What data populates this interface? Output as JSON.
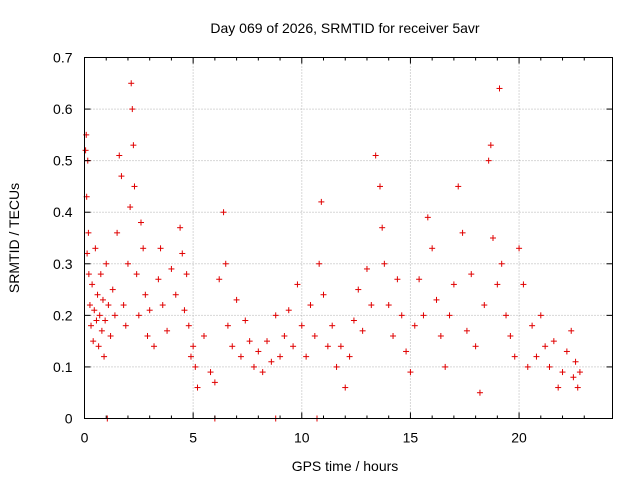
{
  "chart_data": {
    "type": "scatter",
    "title": "Day 069 of 2026, SRMTID for receiver 5avr",
    "xlabel": "GPS time / hours",
    "ylabel": "SRMTID / TECUs",
    "xlim": [
      0,
      24.3
    ],
    "ylim": [
      0,
      0.7
    ],
    "xticks": [
      0,
      5,
      10,
      15,
      20
    ],
    "yticks": [
      0,
      0.1,
      0.2,
      0.3,
      0.4,
      0.5,
      0.6,
      0.7
    ],
    "xtick_labels": [
      "0",
      "5",
      "10",
      "15",
      "20"
    ],
    "ytick_labels": [
      "0",
      "0.1",
      "0.2",
      "0.3",
      "0.4",
      "0.5",
      "0.6",
      "0.7"
    ],
    "grid": true,
    "marker": "+",
    "color": "#e00000",
    "series": [
      {
        "name": "SRMTID",
        "points": [
          [
            0.05,
            0.52
          ],
          [
            0.08,
            0.55
          ],
          [
            0.1,
            0.43
          ],
          [
            0.12,
            0.32
          ],
          [
            0.15,
            0.5
          ],
          [
            0.18,
            0.36
          ],
          [
            0.2,
            0.28
          ],
          [
            0.25,
            0.22
          ],
          [
            0.3,
            0.18
          ],
          [
            0.35,
            0.26
          ],
          [
            0.4,
            0.15
          ],
          [
            0.45,
            0.21
          ],
          [
            0.5,
            0.33
          ],
          [
            0.55,
            0.19
          ],
          [
            0.6,
            0.24
          ],
          [
            0.65,
            0.14
          ],
          [
            0.7,
            0.2
          ],
          [
            0.75,
            0.28
          ],
          [
            0.8,
            0.17
          ],
          [
            0.85,
            0.23
          ],
          [
            0.9,
            0.12
          ],
          [
            0.95,
            0.19
          ],
          [
            1.0,
            0.3
          ],
          [
            1.1,
            0.22
          ],
          [
            1.2,
            0.16
          ],
          [
            1.3,
            0.25
          ],
          [
            1.4,
            0.2
          ],
          [
            1.5,
            0.36
          ],
          [
            1.6,
            0.51
          ],
          [
            1.7,
            0.47
          ],
          [
            1.8,
            0.22
          ],
          [
            1.9,
            0.18
          ],
          [
            2.0,
            0.3
          ],
          [
            2.1,
            0.41
          ],
          [
            2.15,
            0.65
          ],
          [
            2.2,
            0.6
          ],
          [
            2.25,
            0.53
          ],
          [
            2.3,
            0.45
          ],
          [
            2.4,
            0.28
          ],
          [
            2.5,
            0.2
          ],
          [
            2.6,
            0.38
          ],
          [
            2.7,
            0.33
          ],
          [
            2.8,
            0.24
          ],
          [
            2.9,
            0.16
          ],
          [
            3.0,
            0.21
          ],
          [
            3.2,
            0.14
          ],
          [
            3.4,
            0.27
          ],
          [
            3.5,
            0.33
          ],
          [
            3.6,
            0.22
          ],
          [
            3.8,
            0.17
          ],
          [
            4.0,
            0.29
          ],
          [
            4.2,
            0.24
          ],
          [
            4.4,
            0.37
          ],
          [
            4.5,
            0.32
          ],
          [
            4.6,
            0.21
          ],
          [
            4.7,
            0.28
          ],
          [
            4.8,
            0.18
          ],
          [
            4.9,
            0.12
          ],
          [
            5.0,
            0.14
          ],
          [
            5.1,
            0.1
          ],
          [
            5.2,
            0.06
          ],
          [
            5.5,
            0.16
          ],
          [
            5.8,
            0.09
          ],
          [
            6.0,
            0.07
          ],
          [
            6.2,
            0.27
          ],
          [
            6.4,
            0.4
          ],
          [
            6.5,
            0.3
          ],
          [
            6.6,
            0.18
          ],
          [
            6.8,
            0.14
          ],
          [
            7.0,
            0.23
          ],
          [
            7.2,
            0.12
          ],
          [
            7.4,
            0.19
          ],
          [
            7.6,
            0.15
          ],
          [
            7.8,
            0.1
          ],
          [
            8.0,
            0.13
          ],
          [
            8.2,
            0.09
          ],
          [
            8.4,
            0.15
          ],
          [
            8.6,
            0.11
          ],
          [
            8.8,
            0.2
          ],
          [
            9.0,
            0.12
          ],
          [
            9.2,
            0.16
          ],
          [
            9.4,
            0.21
          ],
          [
            9.6,
            0.14
          ],
          [
            9.8,
            0.26
          ],
          [
            10.0,
            0.18
          ],
          [
            10.2,
            0.12
          ],
          [
            10.4,
            0.22
          ],
          [
            10.6,
            0.16
          ],
          [
            10.8,
            0.3
          ],
          [
            10.9,
            0.42
          ],
          [
            11.0,
            0.24
          ],
          [
            11.2,
            0.14
          ],
          [
            11.4,
            0.18
          ],
          [
            11.6,
            0.1
          ],
          [
            11.8,
            0.14
          ],
          [
            12.0,
            0.06
          ],
          [
            12.2,
            0.12
          ],
          [
            12.4,
            0.19
          ],
          [
            12.6,
            0.25
          ],
          [
            12.8,
            0.17
          ],
          [
            13.0,
            0.29
          ],
          [
            13.2,
            0.22
          ],
          [
            13.4,
            0.51
          ],
          [
            13.6,
            0.45
          ],
          [
            13.7,
            0.37
          ],
          [
            13.8,
            0.3
          ],
          [
            14.0,
            0.22
          ],
          [
            14.2,
            0.16
          ],
          [
            14.4,
            0.27
          ],
          [
            14.6,
            0.2
          ],
          [
            14.8,
            0.13
          ],
          [
            15.0,
            0.09
          ],
          [
            15.2,
            0.18
          ],
          [
            15.4,
            0.27
          ],
          [
            15.6,
            0.2
          ],
          [
            15.8,
            0.39
          ],
          [
            16.0,
            0.33
          ],
          [
            16.2,
            0.23
          ],
          [
            16.4,
            0.16
          ],
          [
            16.6,
            0.1
          ],
          [
            16.8,
            0.2
          ],
          [
            17.0,
            0.26
          ],
          [
            17.2,
            0.45
          ],
          [
            17.4,
            0.36
          ],
          [
            17.6,
            0.17
          ],
          [
            17.8,
            0.28
          ],
          [
            18.0,
            0.14
          ],
          [
            18.2,
            0.05
          ],
          [
            18.4,
            0.22
          ],
          [
            18.6,
            0.5
          ],
          [
            18.7,
            0.53
          ],
          [
            18.8,
            0.35
          ],
          [
            19.0,
            0.26
          ],
          [
            19.1,
            0.64
          ],
          [
            19.2,
            0.3
          ],
          [
            19.4,
            0.2
          ],
          [
            19.6,
            0.16
          ],
          [
            19.8,
            0.12
          ],
          [
            20.0,
            0.33
          ],
          [
            20.2,
            0.26
          ],
          [
            20.4,
            0.1
          ],
          [
            20.6,
            0.18
          ],
          [
            20.8,
            0.12
          ],
          [
            21.0,
            0.2
          ],
          [
            21.2,
            0.14
          ],
          [
            21.4,
            0.1
          ],
          [
            21.6,
            0.15
          ],
          [
            21.8,
            0.06
          ],
          [
            22.0,
            0.09
          ],
          [
            22.2,
            0.13
          ],
          [
            22.4,
            0.17
          ],
          [
            22.5,
            0.08
          ],
          [
            22.6,
            0.11
          ],
          [
            22.7,
            0.06
          ],
          [
            22.8,
            0.09
          ]
        ]
      }
    ],
    "zero_points": [
      1.05,
      6.0,
      8.8,
      10.7
    ]
  }
}
